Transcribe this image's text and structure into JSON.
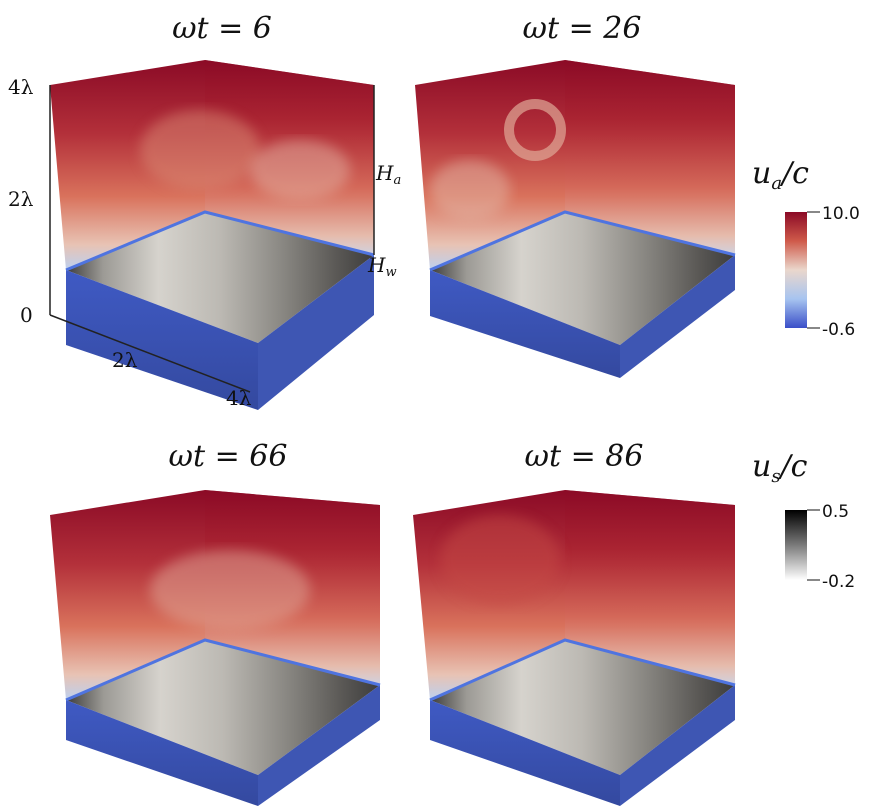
{
  "panels": [
    {
      "title": "ωt = 6"
    },
    {
      "title": "ωt = 26"
    },
    {
      "title": "ωt = 66"
    },
    {
      "title": "ωt = 86"
    }
  ],
  "axes": {
    "z_ticks": [
      "4λ",
      "2λ",
      "0"
    ],
    "x_ticks": [
      "2λ",
      "4λ"
    ],
    "height_labels": {
      "air": "H",
      "air_sub": "a",
      "water": "H",
      "water_sub": "w"
    }
  },
  "colorbars": [
    {
      "title": "u",
      "title_sub": "a",
      "title_tail": "/c",
      "max_label": "10.0",
      "min_label": "-0.6",
      "colors": [
        "#8b0a26",
        "#cf5a4a",
        "#ead7cc",
        "#a7c4f0",
        "#3a4fc8"
      ]
    },
    {
      "title": "u",
      "title_sub": "s",
      "title_tail": "/c",
      "max_label": "0.5",
      "min_label": "-0.2",
      "colors": [
        "#000000",
        "#7a7a7a",
        "#ffffff"
      ]
    }
  ],
  "colors": {
    "air_top": "#8b0a26",
    "air_mid": "#d9725c",
    "interface": "#4f74e0",
    "water": "#3a52b8",
    "wave_light": "#c9c6c0",
    "wave_dark": "#4a4a4a"
  }
}
